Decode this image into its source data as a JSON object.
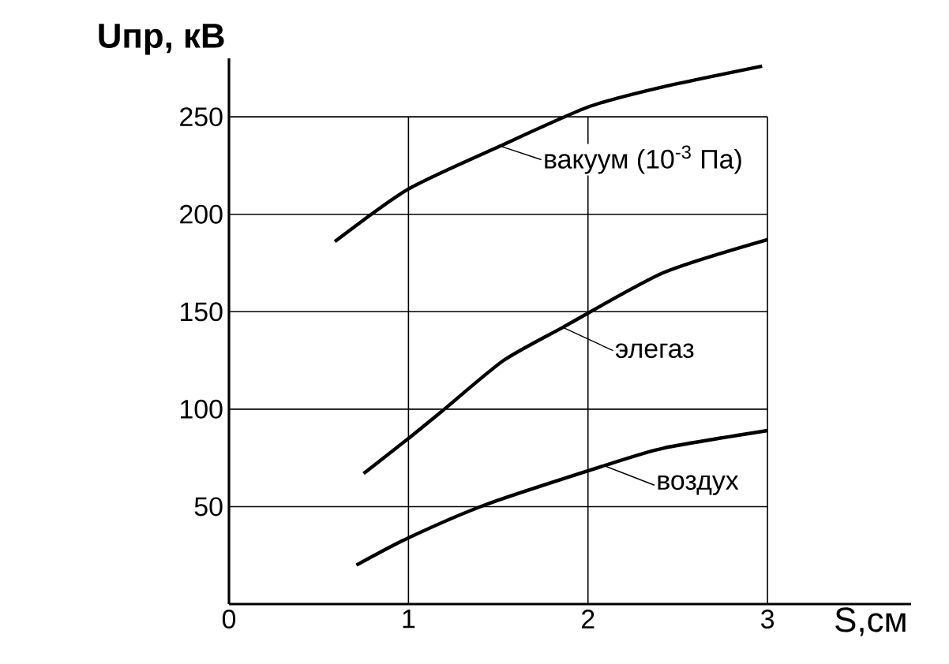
{
  "chart_data": {
    "type": "line",
    "xlabel": "S,см",
    "ylabel": "Uпр, кВ",
    "legend": "right",
    "xlim": [
      0,
      3.8
    ],
    "ylim": [
      0,
      280
    ],
    "xticks": [
      0,
      1,
      2,
      3
    ],
    "yticks": [
      50,
      100,
      150,
      200,
      250
    ],
    "grid": true,
    "color": "#000000",
    "series": [
      {
        "name": "вакуум (10$^{-3}$ Па)",
        "x": [
          0.59,
          1.0,
          1.51,
          2.0,
          2.4,
          2.97
        ],
        "values": [
          186,
          213,
          235,
          255,
          265,
          276
        ]
      },
      {
        "name": "элегаз",
        "x": [
          0.75,
          1.0,
          1.2,
          1.53,
          1.86,
          2.42,
          3.0
        ],
        "values": [
          67,
          85,
          100,
          125,
          142,
          170,
          187
        ]
      },
      {
        "name": "воздух",
        "x": [
          0.71,
          1.0,
          1.43,
          2.09,
          2.42,
          3.0
        ],
        "values": [
          20,
          34,
          51,
          71,
          80,
          89
        ]
      }
    ]
  }
}
